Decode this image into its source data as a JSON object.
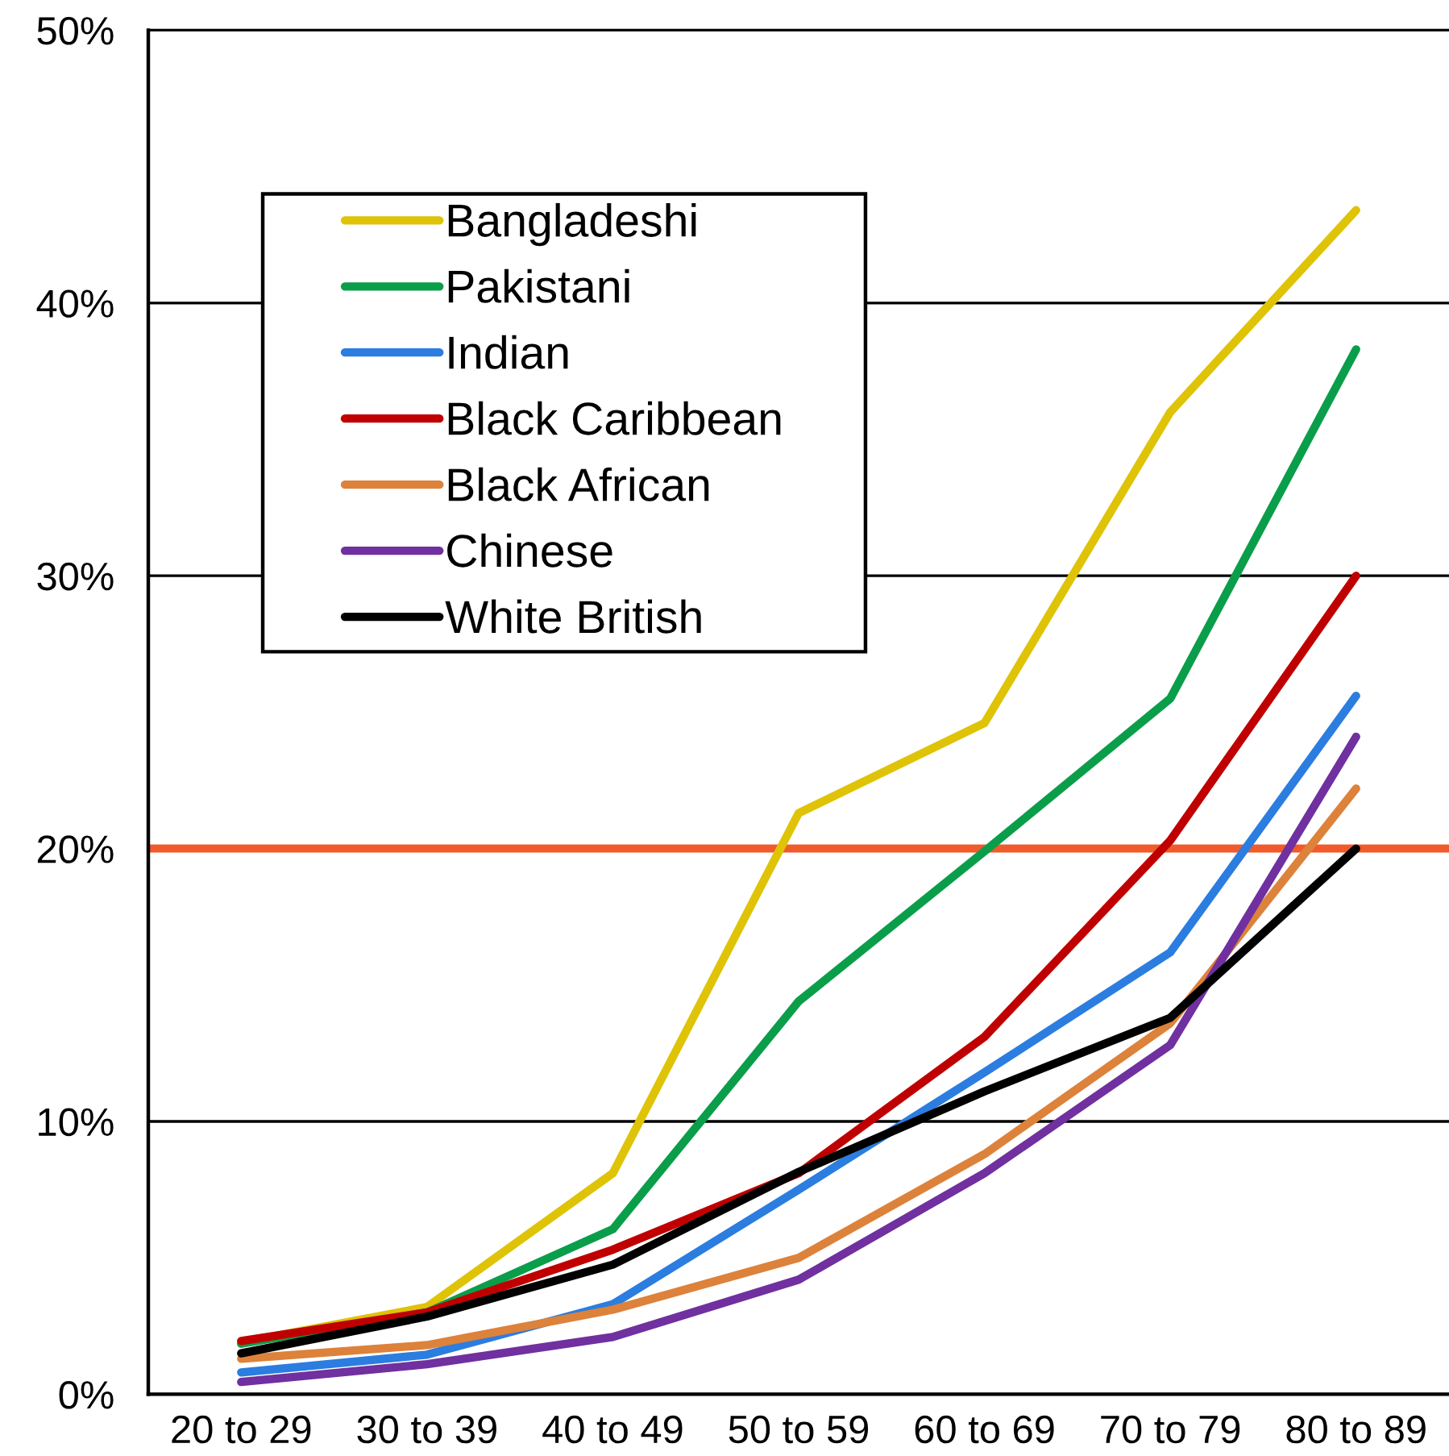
{
  "chart_data": {
    "type": "line",
    "categories": [
      "20 to 29",
      "30 to 39",
      "40 to 49",
      "50 to 59",
      "60 to 69",
      "70 to 79",
      "80 to 89"
    ],
    "series": [
      {
        "name": "Bangladeshi",
        "color": "#dfc306",
        "values": [
          1.9,
          3.2,
          8.1,
          21.3,
          24.6,
          36.0,
          43.4
        ]
      },
      {
        "name": "Pakistani",
        "color": "#0a9e4a",
        "values": [
          1.85,
          3.0,
          6.05,
          14.4,
          19.9,
          25.5,
          38.3
        ]
      },
      {
        "name": "Indian",
        "color": "#2b7de0",
        "values": [
          0.8,
          1.45,
          3.3,
          7.5,
          11.8,
          16.2,
          25.6
        ]
      },
      {
        "name": "Black Caribbean",
        "color": "#c00000",
        "values": [
          1.95,
          3.0,
          5.3,
          8.1,
          13.1,
          20.3,
          30.0
        ]
      },
      {
        "name": "Black African",
        "color": "#dd823b",
        "values": [
          1.3,
          1.8,
          3.1,
          5.0,
          8.8,
          13.6,
          22.2
        ]
      },
      {
        "name": "Chinese",
        "color": "#7030a0",
        "values": [
          0.45,
          1.1,
          2.1,
          4.2,
          8.1,
          12.8,
          24.1
        ]
      },
      {
        "name": "White British",
        "color": "#000000",
        "values": [
          1.5,
          2.85,
          4.75,
          8.15,
          11.1,
          13.8,
          20.0
        ]
      }
    ],
    "ylim": [
      0,
      50
    ],
    "yticks": [
      {
        "value": 0,
        "label": "0%"
      },
      {
        "value": 10,
        "label": "10%"
      },
      {
        "value": 20,
        "label": "20%"
      },
      {
        "value": 30,
        "label": "30%"
      },
      {
        "value": 40,
        "label": "40%"
      },
      {
        "value": 50,
        "label": "50%"
      }
    ],
    "grid": "y",
    "legend": "top left",
    "line_style": "solid",
    "ref_lines": [
      {
        "axis": "y",
        "value": 20,
        "color": "#f15a2b"
      }
    ]
  }
}
